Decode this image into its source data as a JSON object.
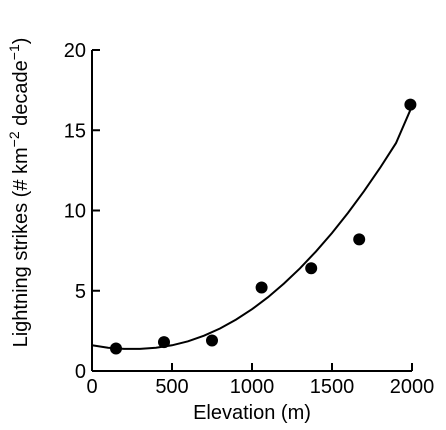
{
  "chart_data": {
    "type": "scatter",
    "xlabel": "Elevation (m)",
    "ylabel": {
      "text": "Lightning strikes (# km",
      "sup1": "−2",
      "mid": " decade",
      "sup2": "−1",
      "end": ")"
    },
    "xlim": [
      0,
      2000
    ],
    "ylim": [
      0,
      20
    ],
    "x_ticks": [
      0,
      500,
      1000,
      1500,
      2000
    ],
    "y_ticks": [
      0,
      5,
      10,
      15,
      20
    ],
    "grid": false,
    "series": [
      {
        "kind": "points",
        "x": [
          150,
          450,
          750,
          1060,
          1370,
          1670,
          1990
        ],
        "y": [
          1.4,
          1.8,
          1.9,
          5.2,
          6.4,
          8.2,
          16.6
        ]
      }
    ],
    "fit": {
      "kind": "curve",
      "x": [
        0,
        100,
        200,
        300,
        400,
        500,
        600,
        700,
        800,
        900,
        1000,
        1100,
        1200,
        1300,
        1400,
        1500,
        1600,
        1700,
        1800,
        1900,
        2000
      ],
      "y": [
        1.6,
        1.45,
        1.38,
        1.38,
        1.45,
        1.6,
        1.85,
        2.2,
        2.65,
        3.2,
        3.85,
        4.6,
        5.45,
        6.4,
        7.45,
        8.6,
        9.85,
        11.2,
        12.65,
        14.2,
        16.5
      ]
    },
    "colors": {
      "points": "#000000",
      "line": "#000000",
      "axis": "#000000"
    }
  }
}
